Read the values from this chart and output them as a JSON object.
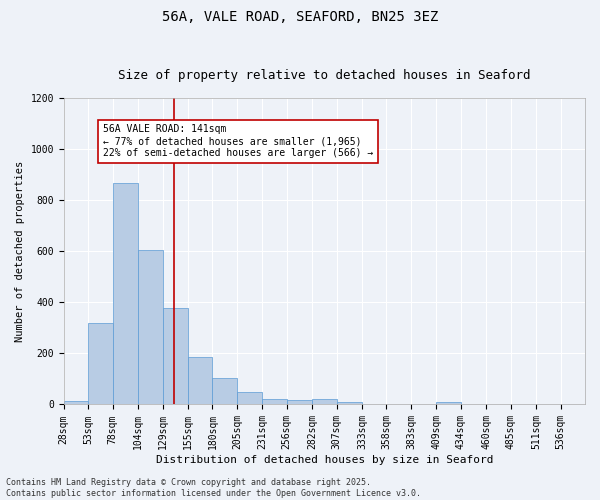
{
  "title": "56A, VALE ROAD, SEAFORD, BN25 3EZ",
  "subtitle": "Size of property relative to detached houses in Seaford",
  "xlabel": "Distribution of detached houses by size in Seaford",
  "ylabel": "Number of detached properties",
  "bin_labels": [
    "28sqm",
    "53sqm",
    "78sqm",
    "104sqm",
    "129sqm",
    "155sqm",
    "180sqm",
    "205sqm",
    "231sqm",
    "256sqm",
    "282sqm",
    "307sqm",
    "333sqm",
    "358sqm",
    "383sqm",
    "409sqm",
    "434sqm",
    "460sqm",
    "485sqm",
    "511sqm",
    "536sqm"
  ],
  "bin_edges": [
    28,
    53,
    78,
    104,
    129,
    155,
    180,
    205,
    231,
    256,
    282,
    307,
    333,
    358,
    383,
    409,
    434,
    460,
    485,
    511,
    536,
    561
  ],
  "bar_values": [
    15,
    320,
    870,
    605,
    380,
    185,
    105,
    50,
    20,
    18,
    20,
    10,
    0,
    0,
    0,
    10,
    0,
    0,
    0,
    0,
    0
  ],
  "bar_color": "#b8cce4",
  "bar_edgecolor": "#5b9bd5",
  "vline_x": 141,
  "vline_color": "#c00000",
  "annotation_line1": "56A VALE ROAD: 141sqm",
  "annotation_line2": "← 77% of detached houses are smaller (1,965)",
  "annotation_line3": "22% of semi-detached houses are larger (566) →",
  "annotation_color": "#c00000",
  "ylim": [
    0,
    1200
  ],
  "yticks": [
    0,
    200,
    400,
    600,
    800,
    1000,
    1200
  ],
  "background_color": "#eef2f8",
  "grid_color": "#ffffff",
  "footer_line1": "Contains HM Land Registry data © Crown copyright and database right 2025.",
  "footer_line2": "Contains public sector information licensed under the Open Government Licence v3.0.",
  "title_fontsize": 10,
  "subtitle_fontsize": 9,
  "xlabel_fontsize": 8,
  "ylabel_fontsize": 7.5,
  "tick_fontsize": 7,
  "annotation_fontsize": 7,
  "footer_fontsize": 6
}
